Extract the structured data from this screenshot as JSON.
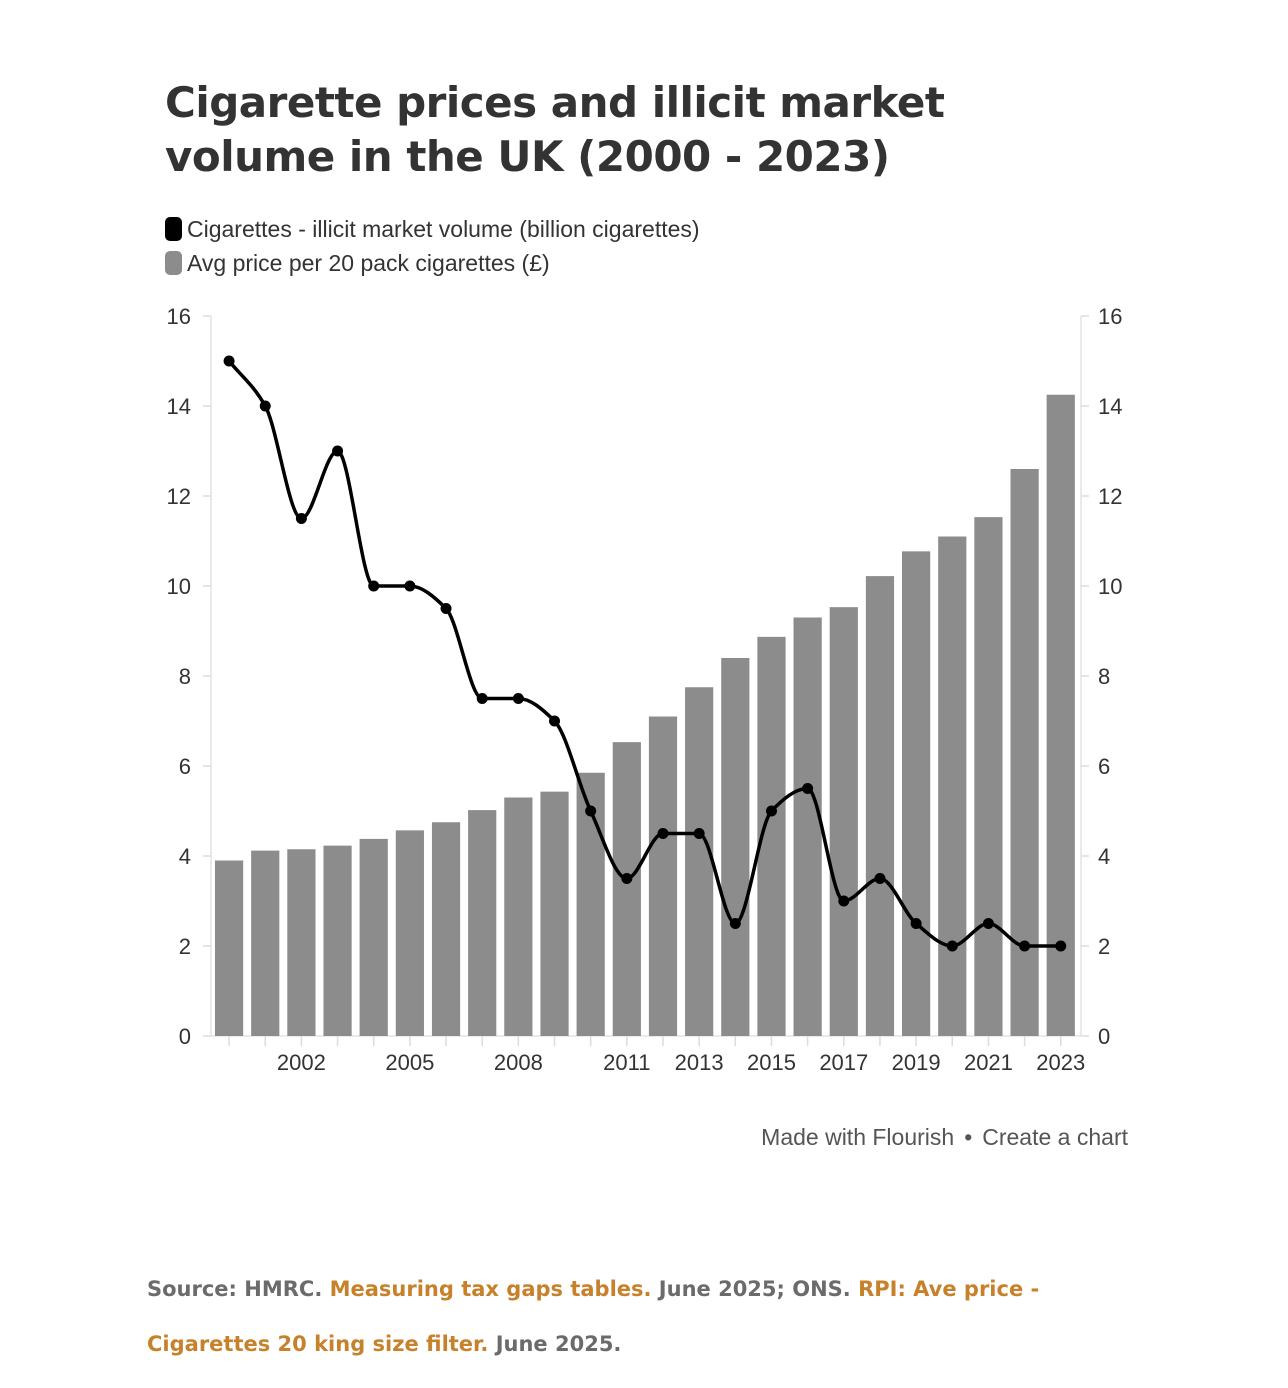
{
  "title": "Cigarette prices and illicit market volume in the UK (2000 - 2023)",
  "legend": [
    {
      "label": "Cigarettes - illicit market volume (billion cigarettes)",
      "color": "#000000"
    },
    {
      "label": "Avg price per 20 pack cigarettes (£)",
      "color": "#8c8c8c"
    }
  ],
  "credit": {
    "made_with": "Made with Flourish",
    "separator": "•",
    "create": "Create a chart"
  },
  "source": {
    "prefix": "Source: HMRC. ",
    "link1": "Measuring tax gaps tables.",
    "middle": " June 2025; ONS. ",
    "link2": "RPI: Ave price - Cigarettes 20 king size filter.",
    "suffix": " June 2025."
  },
  "colors": {
    "line": "#000000",
    "bar": "#8c8c8c",
    "link": "#c8812b"
  },
  "chart_data": {
    "type": "bar+line",
    "x": [
      2000,
      2001,
      2002,
      2003,
      2004,
      2005,
      2006,
      2007,
      2008,
      2009,
      2010,
      2011,
      2012,
      2013,
      2014,
      2015,
      2016,
      2017,
      2018,
      2019,
      2020,
      2021,
      2022,
      2023
    ],
    "x_tick_labels": [
      "2002",
      "2005",
      "2008",
      "2011",
      "2013",
      "2015",
      "2017",
      "2019",
      "2021",
      "2023"
    ],
    "ylim": [
      0,
      16
    ],
    "y_ticks": [
      "0",
      "2",
      "4",
      "6",
      "8",
      "10",
      "12",
      "14",
      "16"
    ],
    "grid": false,
    "legend_position": "top-left",
    "series": [
      {
        "name": "Cigarettes - illicit market volume (billion cigarettes)",
        "type": "line",
        "axis": "left",
        "values": [
          15,
          14,
          11.5,
          13,
          10,
          10,
          9.5,
          7.5,
          7.5,
          7,
          5,
          3.5,
          4.5,
          4.5,
          2.5,
          5,
          5.5,
          3,
          3.5,
          2.5,
          2,
          2.5,
          2,
          2
        ]
      },
      {
        "name": "Avg price per 20 pack cigarettes (£)",
        "type": "bar",
        "axis": "right",
        "values": [
          3.9,
          4.12,
          4.15,
          4.23,
          4.38,
          4.57,
          4.75,
          5.02,
          5.3,
          5.43,
          5.85,
          6.53,
          7.1,
          7.75,
          8.4,
          8.87,
          9.3,
          9.53,
          10.22,
          10.77,
          11.1,
          11.53,
          12.6,
          14.25
        ]
      }
    ]
  }
}
